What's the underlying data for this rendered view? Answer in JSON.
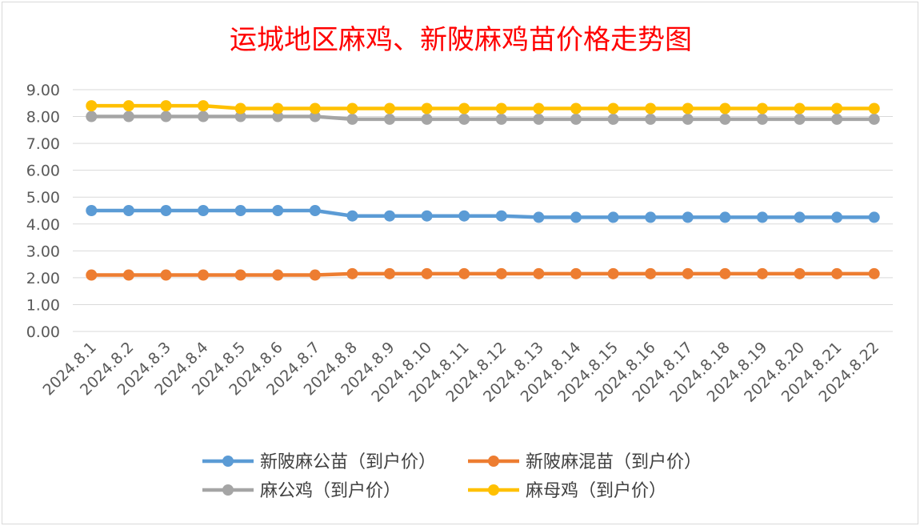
{
  "chart_data": {
    "type": "line",
    "title": "运城地区麻鸡、新陂麻鸡苗价格走势图",
    "xlabel": "",
    "ylabel": "",
    "ylim": [
      0,
      9
    ],
    "ytick_labels": [
      "0.00",
      "1.00",
      "2.00",
      "3.00",
      "4.00",
      "5.00",
      "6.00",
      "7.00",
      "8.00",
      "9.00"
    ],
    "grid": true,
    "legend_position": "bottom",
    "categories": [
      "2024.8.1",
      "2024.8.2",
      "2024.8.3",
      "2024.8.4",
      "2024.8.5",
      "2024.8.6",
      "2024.8.7",
      "2024.8.8",
      "2024.8.9",
      "2024.8.10",
      "2024.8.11",
      "2024.8.12",
      "2024.8.13",
      "2024.8.14",
      "2024.8.15",
      "2024.8.16",
      "2024.8.17",
      "2024.8.18",
      "2024.8.19",
      "2024.8.20",
      "2024.8.21",
      "2024.8.22"
    ],
    "series": [
      {
        "name": "新陂麻公苗（到户价）",
        "color": "#5b9bd5",
        "values": [
          4.5,
          4.5,
          4.5,
          4.5,
          4.5,
          4.5,
          4.5,
          4.3,
          4.3,
          4.3,
          4.3,
          4.3,
          4.25,
          4.25,
          4.25,
          4.25,
          4.25,
          4.25,
          4.25,
          4.25,
          4.25,
          4.25
        ]
      },
      {
        "name": "新陂麻混苗（到户价）",
        "color": "#ed7d31",
        "values": [
          2.1,
          2.1,
          2.1,
          2.1,
          2.1,
          2.1,
          2.1,
          2.15,
          2.15,
          2.15,
          2.15,
          2.15,
          2.15,
          2.15,
          2.15,
          2.15,
          2.15,
          2.15,
          2.15,
          2.15,
          2.15,
          2.15
        ]
      },
      {
        "name": "麻公鸡（到户价）",
        "color": "#a5a5a5",
        "values": [
          8.0,
          8.0,
          8.0,
          8.0,
          8.0,
          8.0,
          8.0,
          7.9,
          7.9,
          7.9,
          7.9,
          7.9,
          7.9,
          7.9,
          7.9,
          7.9,
          7.9,
          7.9,
          7.9,
          7.9,
          7.9,
          7.9
        ]
      },
      {
        "name": "麻母鸡（到户价）",
        "color": "#ffc000",
        "values": [
          8.4,
          8.4,
          8.4,
          8.4,
          8.3,
          8.3,
          8.3,
          8.3,
          8.3,
          8.3,
          8.3,
          8.3,
          8.3,
          8.3,
          8.3,
          8.3,
          8.3,
          8.3,
          8.3,
          8.3,
          8.3,
          8.3
        ]
      }
    ]
  }
}
